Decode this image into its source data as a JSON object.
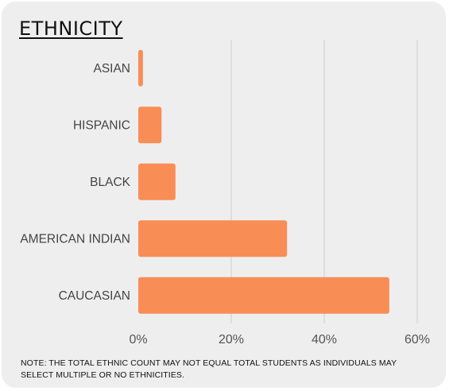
{
  "title": "ETHNICITY",
  "note": "NOTE: THE TOTAL ETHNIC COUNT MAY NOT EQUAL TOTAL STUDENTS AS INDIVIDUALS MAY SELECT MULTIPLE OR NO ETHNICITIES.",
  "colors": {
    "bar": "#f98d56",
    "grid": "#cfcfcf",
    "background": "#eeeeef"
  },
  "chart_data": {
    "type": "bar",
    "orientation": "horizontal",
    "categories": [
      "ASIAN",
      "HISPANIC",
      "BLACK",
      "AMERICAN INDIAN",
      "CAUCASIAN"
    ],
    "values": [
      1,
      5,
      8,
      32,
      54
    ],
    "xlim": [
      0,
      60
    ],
    "xticks": [
      0,
      20,
      40,
      60
    ],
    "xtick_labels": [
      "0%",
      "20%",
      "40%",
      "60%"
    ],
    "grid": true
  }
}
